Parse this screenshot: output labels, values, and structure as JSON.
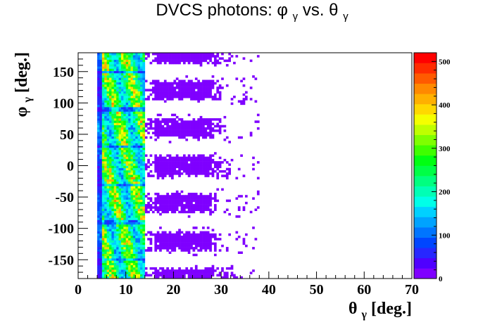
{
  "chart_data": {
    "type": "heatmap",
    "title": {
      "prefix": "DVCS photons: ",
      "sym1": "φ",
      "sub1": "γ",
      "mid": "  vs. ",
      "sym2": "θ",
      "sub2": "γ"
    },
    "xlabel": {
      "sym": "θ",
      "sub": "γ",
      "unit": " [deg.]"
    },
    "ylabel": {
      "sym": "φ",
      "sub": "γ",
      "unit": " [deg.]"
    },
    "xlim": [
      0,
      70
    ],
    "ylim": [
      -180,
      180
    ],
    "x_ticks": [
      0,
      10,
      20,
      30,
      40,
      50,
      60,
      70
    ],
    "y_ticks": [
      -150,
      -100,
      -50,
      0,
      50,
      100,
      150
    ],
    "x_tick_labels": [
      "0",
      "10",
      "20",
      "30",
      "40",
      "50",
      "60",
      "70"
    ],
    "y_tick_labels": [
      "-150",
      "-100",
      "-50",
      "0",
      "50",
      "100",
      "150"
    ],
    "z_range": [
      0,
      520
    ],
    "z_ticks": [
      0,
      100,
      200,
      300,
      400,
      500
    ],
    "z_tick_labels": [
      "0",
      "100",
      "200",
      "300",
      "400",
      "500"
    ],
    "palette": [
      "#7f00ff",
      "#4f00ff",
      "#2727ff",
      "#0046ff",
      "#0075ff",
      "#00a3ff",
      "#00d1ff",
      "#00ffe8",
      "#00ffb5",
      "#00ff7f",
      "#00ff46",
      "#00ff12",
      "#3fff00",
      "#7fff00",
      "#bfff00",
      "#f4ff00",
      "#ffd800",
      "#ffb000",
      "#ff8900",
      "#ff5a00",
      "#ff2b00",
      "#ff0000"
    ],
    "structure": {
      "dense_band_theta": [
        4.2,
        14.2
      ],
      "sector_centers_phi": [
        -180,
        -120,
        -60,
        0,
        60,
        120,
        180
      ],
      "sector_half_width_phi": 17,
      "sector_theta_max": [
        33,
        30,
        29,
        32,
        30,
        30,
        32
      ],
      "dense_counts_typical": [
        150,
        350
      ],
      "sparse_counts_typical": [
        2,
        10
      ],
      "max_theta_observed": 38
    }
  }
}
